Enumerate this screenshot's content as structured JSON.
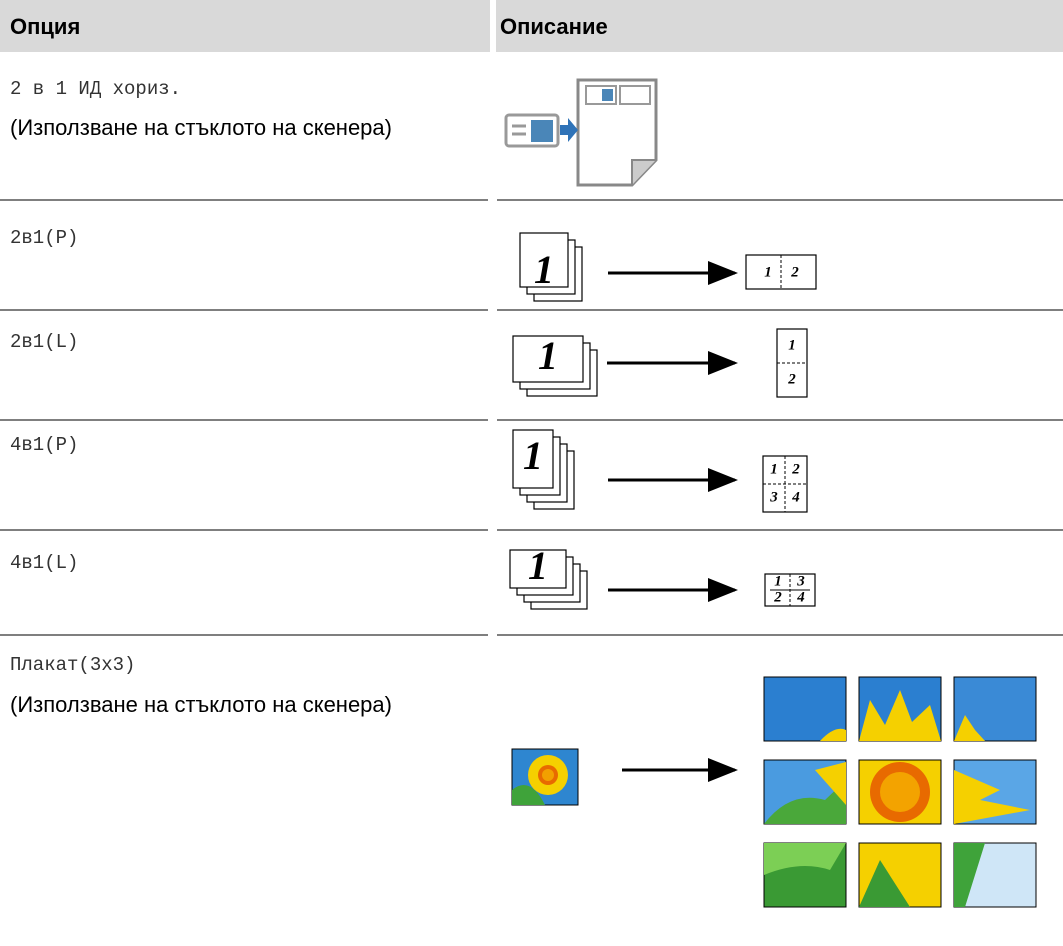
{
  "header": {
    "option": "Опция",
    "description": "Описание"
  },
  "rows": [
    {
      "option": "2 в 1 ИД хориз.",
      "note": "(Използване на стъклото на скенера)"
    },
    {
      "option": "2в1(P)",
      "source": "1",
      "result": [
        "1",
        "2"
      ]
    },
    {
      "option": "2в1(L)",
      "source": "1",
      "result": [
        "1",
        "2"
      ]
    },
    {
      "option": "4в1(P)",
      "source": "1",
      "result": [
        "1",
        "2",
        "3",
        "4"
      ]
    },
    {
      "option": "4в1(L)",
      "source": "1",
      "result": [
        "1",
        "3",
        "2",
        "4"
      ]
    },
    {
      "option": "Плакат(3x3)",
      "note": "(Използване на стъклото на скенера)"
    }
  ]
}
